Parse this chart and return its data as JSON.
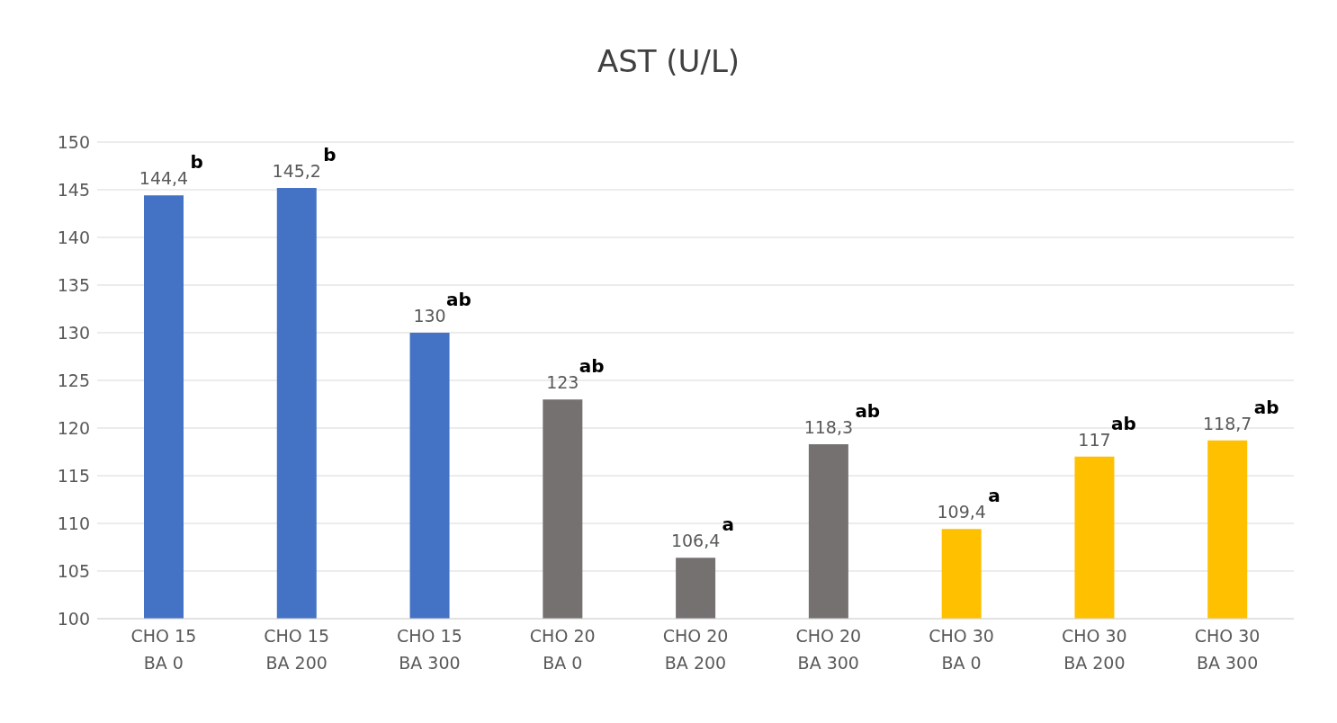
{
  "chart_data": {
    "type": "bar",
    "title": "AST (U/L)",
    "categories": [
      "CHO 15\nBA 0",
      "CHO 15\nBA 200",
      "CHO 15\nBA 300",
      "CHO 20\nBA 0",
      "CHO 20\nBA 200",
      "CHO 20\nBA 300",
      "CHO 30\nBA 0",
      "CHO 30\nBA 200",
      "CHO 30\nBA 300"
    ],
    "values": [
      144.4,
      145.2,
      130,
      123,
      106.4,
      118.3,
      109.4,
      117,
      118.7
    ],
    "colors": [
      "#4472c4",
      "#4472c4",
      "#4472c4",
      "#767171",
      "#767171",
      "#767171",
      "#ffc000",
      "#ffc000",
      "#ffc000"
    ],
    "value_labels": [
      "144,4",
      "145,2",
      "130",
      "123",
      "106,4",
      "118,3",
      "109,4",
      "117",
      "118,7"
    ],
    "annotations": [
      {
        "text": "b",
        "x": "CHO 15\nBA 0",
        "y": 144.4
      },
      {
        "text": "b",
        "x": "CHO 15\nBA 200",
        "y": 145.2
      },
      {
        "text": "ab",
        "x": "CHO 15\nBA 300",
        "y": 130
      },
      {
        "text": "ab",
        "x": "CHO 20\nBA 0",
        "y": 123
      },
      {
        "text": "a",
        "x": "CHO 20\nBA 200",
        "y": 106.4
      },
      {
        "text": "ab",
        "x": "CHO 20\nBA 300",
        "y": 118.3
      },
      {
        "text": "a",
        "x": "CHO 30\nBA 0",
        "y": 109.4
      },
      {
        "text": "ab",
        "x": "CHO 30\nBA 200",
        "y": 117
      },
      {
        "text": "ab",
        "x": "CHO 30\nBA 300",
        "y": 118.7
      }
    ],
    "ylim": [
      100,
      150
    ],
    "yticks": [
      100,
      105,
      110,
      115,
      120,
      125,
      130,
      135,
      140,
      145,
      150
    ],
    "grid": "y"
  }
}
